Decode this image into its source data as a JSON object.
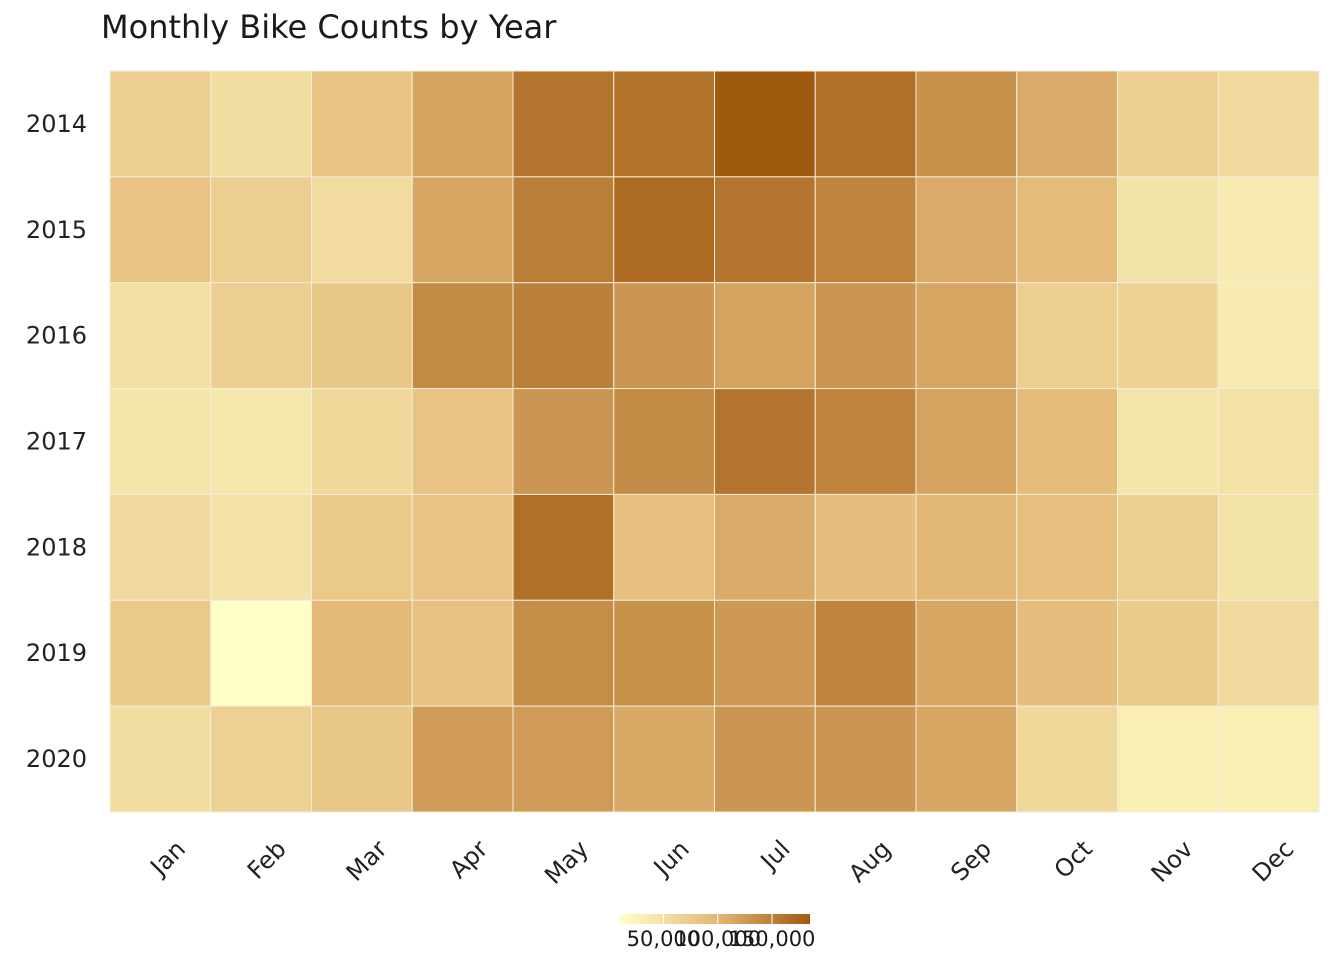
{
  "chart_data": {
    "type": "heatmap",
    "title": "Monthly Bike Counts by Year",
    "xlabel": "",
    "ylabel": "",
    "x_categories": [
      "Jan",
      "Feb",
      "Mar",
      "Apr",
      "May",
      "Jun",
      "Jul",
      "Aug",
      "Sep",
      "Oct",
      "Nov",
      "Dec"
    ],
    "y_categories": [
      "2014",
      "2015",
      "2016",
      "2017",
      "2018",
      "2019",
      "2020"
    ],
    "values": [
      [
        70000,
        52000,
        82000,
        118000,
        160000,
        162000,
        185000,
        165000,
        135000,
        110000,
        70000,
        58000
      ],
      [
        85000,
        70000,
        55000,
        115000,
        152000,
        170000,
        160000,
        145000,
        110000,
        95000,
        45000,
        35000
      ],
      [
        50000,
        70000,
        80000,
        140000,
        150000,
        130000,
        118000,
        130000,
        115000,
        70000,
        65000,
        35000
      ],
      [
        42000,
        40000,
        60000,
        85000,
        130000,
        140000,
        160000,
        145000,
        118000,
        95000,
        42000,
        48000
      ],
      [
        58000,
        48000,
        78000,
        85000,
        165000,
        90000,
        110000,
        92000,
        100000,
        90000,
        70000,
        45000
      ],
      [
        78000,
        8000,
        98000,
        88000,
        138000,
        135000,
        128000,
        145000,
        115000,
        92000,
        75000,
        58000
      ],
      [
        52000,
        68000,
        80000,
        125000,
        125000,
        112000,
        130000,
        130000,
        115000,
        60000,
        30000,
        30000
      ]
    ],
    "color_scale": {
      "low": "#ffffc8",
      "mid": "#e4b977",
      "high": "#a05a10",
      "domain": [
        10000,
        185000
      ]
    },
    "legend": {
      "position": "bottom",
      "ticks": [
        {
          "value": 50000,
          "label": "50,000"
        },
        {
          "value": 100000,
          "label": "100,000"
        },
        {
          "value": 150000,
          "label": "150,000"
        }
      ]
    },
    "grid": false
  }
}
